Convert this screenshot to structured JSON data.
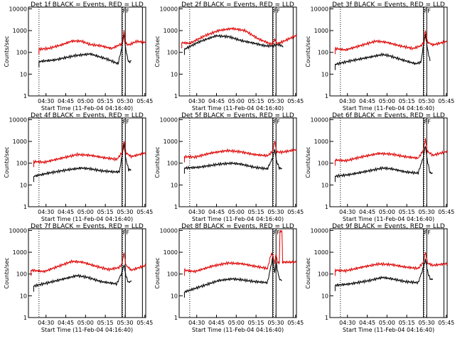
{
  "colors": {
    "events": "#000000",
    "lld": "#dd0000"
  },
  "x_tick_labels": [
    "04:30",
    "04:45",
    "05:00",
    "05:15",
    "05:30",
    "05:45"
  ],
  "y_tick_labels": [
    "1",
    "10",
    "100",
    "1000",
    "10000"
  ],
  "ylabel": "Counts/sec",
  "xlabel": "Start Time (11-Feb-04 04:16:40)",
  "marker_label": "F",
  "chart_data": [
    {
      "type": "line",
      "title": "Det 1f BLACK = Events, RED = LLD",
      "xlabel": "Start Time (11-Feb-04 04:16:40)",
      "ylabel": "Counts/sec",
      "y_scale": "log",
      "ylim": [
        1,
        12000
      ],
      "series": [
        {
          "name": "Events",
          "color": "#000000",
          "points": [
            [
              23,
              38
            ],
            [
              35,
              45
            ],
            [
              50,
              70
            ],
            [
              62,
              85
            ],
            [
              75,
              48
            ],
            [
              83,
              30
            ],
            [
              86,
              180
            ],
            [
              87.5,
              650
            ],
            [
              89,
              120
            ],
            [
              91,
              35
            ],
            [
              93,
              40
            ]
          ]
        },
        {
          "name": "LLD",
          "color": "#dd0000",
          "points": [
            [
              23,
              140
            ],
            [
              30,
              150
            ],
            [
              40,
              220
            ],
            [
              48,
              330
            ],
            [
              55,
              330
            ],
            [
              62,
              230
            ],
            [
              70,
              200
            ],
            [
              78,
              150
            ],
            [
              86,
              250
            ],
            [
              87.5,
              900
            ],
            [
              89,
              250
            ],
            [
              91,
              220
            ],
            [
              97,
              320
            ],
            [
              104,
              290
            ]
          ]
        }
      ]
    },
    {
      "type": "line",
      "title": "Det 2f BLACK = Events, RED = LLD",
      "xlabel": "Start Time (11-Feb-04 04:16:40)",
      "ylabel": "Counts/sec",
      "y_scale": "log",
      "ylim": [
        1,
        12000
      ],
      "series": [
        {
          "name": "Events",
          "color": "#000000",
          "points": [
            [
              19,
              140
            ],
            [
              30,
              300
            ],
            [
              43,
              580
            ],
            [
              53,
              520
            ],
            [
              62,
              350
            ],
            [
              72,
              260
            ],
            [
              80,
              200
            ],
            [
              86,
              200
            ],
            [
              88,
              220
            ],
            [
              91,
              230
            ],
            [
              94,
              180
            ]
          ]
        },
        {
          "name": "LLD",
          "color": "#dd0000",
          "points": [
            [
              17,
              280
            ],
            [
              23,
              260
            ],
            [
              35,
              600
            ],
            [
              45,
              1000
            ],
            [
              55,
              1250
            ],
            [
              65,
              1000
            ],
            [
              75,
              420
            ],
            [
              84,
              250
            ],
            [
              86,
              250
            ],
            [
              87.5,
              380
            ],
            [
              89,
              250
            ],
            [
              93,
              300
            ],
            [
              104,
              600
            ]
          ]
        }
      ]
    },
    {
      "type": "line",
      "title": "Det 3f BLACK = Events, RED = LLD",
      "xlabel": "Start Time (11-Feb-04 04:16:40)",
      "ylabel": "Counts/sec",
      "y_scale": "log",
      "ylim": [
        1,
        12000
      ],
      "series": [
        {
          "name": "Events",
          "color": "#000000",
          "points": [
            [
              19,
              28
            ],
            [
              30,
              40
            ],
            [
              45,
              60
            ],
            [
              55,
              80
            ],
            [
              60,
              70
            ],
            [
              70,
              45
            ],
            [
              80,
              30
            ],
            [
              84,
              35
            ],
            [
              86,
              200
            ],
            [
              87.5,
              650
            ],
            [
              89,
              150
            ],
            [
              91,
              40
            ]
          ]
        },
        {
          "name": "LLD",
          "color": "#dd0000",
          "points": [
            [
              19,
              150
            ],
            [
              27,
              130
            ],
            [
              40,
              220
            ],
            [
              50,
              330
            ],
            [
              58,
              290
            ],
            [
              68,
              200
            ],
            [
              78,
              150
            ],
            [
              84,
              200
            ],
            [
              86,
              260
            ],
            [
              87.5,
              1000
            ],
            [
              89,
              300
            ],
            [
              93,
              220
            ],
            [
              104,
              320
            ]
          ]
        }
      ]
    },
    {
      "type": "line",
      "title": "Det 4f BLACK = Events, RED = LLD",
      "xlabel": "Start Time (11-Feb-04 04:16:40)",
      "ylabel": "Counts/sec",
      "y_scale": "log",
      "ylim": [
        1,
        12000
      ],
      "series": [
        {
          "name": "Events",
          "color": "#000000",
          "points": [
            [
              19,
              25
            ],
            [
              30,
              35
            ],
            [
              45,
              50
            ],
            [
              55,
              60
            ],
            [
              62,
              55
            ],
            [
              70,
              45
            ],
            [
              80,
              40
            ],
            [
              84,
              40
            ],
            [
              86,
              220
            ],
            [
              87.5,
              800
            ],
            [
              89,
              150
            ],
            [
              91,
              50
            ],
            [
              93,
              50
            ]
          ]
        },
        {
          "name": "LLD",
          "color": "#dd0000",
          "points": [
            [
              19,
              120
            ],
            [
              27,
              110
            ],
            [
              40,
              170
            ],
            [
              52,
              250
            ],
            [
              62,
              230
            ],
            [
              72,
              180
            ],
            [
              82,
              150
            ],
            [
              86,
              300
            ],
            [
              87.5,
              1100
            ],
            [
              89,
              300
            ],
            [
              93,
              200
            ],
            [
              104,
              300
            ]
          ]
        }
      ]
    },
    {
      "type": "line",
      "title": "Det 5f BLACK = Events, RED = LLD",
      "xlabel": "Start Time (11-Feb-04 04:16:40)",
      "ylabel": "Counts/sec",
      "y_scale": "log",
      "ylim": [
        1,
        12000
      ],
      "series": [
        {
          "name": "Events",
          "color": "#000000",
          "points": [
            [
              19,
              60
            ],
            [
              30,
              65
            ],
            [
              45,
              90
            ],
            [
              55,
              100
            ],
            [
              62,
              90
            ],
            [
              72,
              65
            ],
            [
              82,
              55
            ],
            [
              86,
              180
            ],
            [
              87.5,
              450
            ],
            [
              89,
              120
            ],
            [
              91,
              60
            ],
            [
              93,
              55
            ]
          ]
        },
        {
          "name": "LLD",
          "color": "#dd0000",
          "points": [
            [
              19,
              200
            ],
            [
              27,
              190
            ],
            [
              40,
              300
            ],
            [
              52,
              380
            ],
            [
              62,
              330
            ],
            [
              72,
              250
            ],
            [
              82,
              220
            ],
            [
              86,
              350
            ],
            [
              87.5,
              1100
            ],
            [
              89,
              330
            ],
            [
              93,
              320
            ],
            [
              104,
              420
            ]
          ]
        }
      ]
    },
    {
      "type": "line",
      "title": "Det 6f BLACK = Events, RED = LLD",
      "xlabel": "Start Time (11-Feb-04 04:16:40)",
      "ylabel": "Counts/sec",
      "y_scale": "log",
      "ylim": [
        1,
        12000
      ],
      "series": [
        {
          "name": "Events",
          "color": "#000000",
          "points": [
            [
              19,
              25
            ],
            [
              30,
              30
            ],
            [
              45,
              45
            ],
            [
              55,
              60
            ],
            [
              62,
              55
            ],
            [
              72,
              40
            ],
            [
              82,
              35
            ],
            [
              86,
              200
            ],
            [
              87.5,
              650
            ],
            [
              89,
              130
            ],
            [
              91,
              35
            ],
            [
              93,
              35
            ]
          ]
        },
        {
          "name": "LLD",
          "color": "#dd0000",
          "points": [
            [
              19,
              140
            ],
            [
              27,
              130
            ],
            [
              40,
              200
            ],
            [
              52,
              280
            ],
            [
              62,
              260
            ],
            [
              72,
              200
            ],
            [
              82,
              170
            ],
            [
              86,
              400
            ],
            [
              87.5,
              1300
            ],
            [
              89,
              350
            ],
            [
              93,
              230
            ],
            [
              104,
              350
            ]
          ]
        }
      ]
    },
    {
      "type": "line",
      "title": "Det 7f BLACK = Events, RED = LLD",
      "xlabel": "Start Time (11-Feb-04 04:16:40)",
      "ylabel": "Counts/sec",
      "y_scale": "log",
      "ylim": [
        1,
        12000
      ],
      "series": [
        {
          "name": "Events",
          "color": "#000000",
          "points": [
            [
              19,
              28
            ],
            [
              30,
              40
            ],
            [
              42,
              60
            ],
            [
              52,
              85
            ],
            [
              60,
              70
            ],
            [
              70,
              45
            ],
            [
              82,
              35
            ],
            [
              86,
              120
            ],
            [
              87.5,
              250
            ],
            [
              89,
              80
            ],
            [
              91,
              40
            ],
            [
              93,
              50
            ]
          ]
        },
        {
          "name": "LLD",
          "color": "#dd0000",
          "points": [
            [
              17,
              150
            ],
            [
              27,
              130
            ],
            [
              38,
              230
            ],
            [
              48,
              380
            ],
            [
              56,
              350
            ],
            [
              66,
              230
            ],
            [
              76,
              160
            ],
            [
              84,
              200
            ],
            [
              86,
              300
            ],
            [
              87.5,
              900
            ],
            [
              89,
              250
            ],
            [
              93,
              150
            ],
            [
              104,
              250
            ]
          ]
        }
      ]
    },
    {
      "type": "line",
      "title": "Det 8f BLACK = Events, RED = LLD",
      "xlabel": "Start Time (11-Feb-04 04:16:40)",
      "ylabel": "Counts/sec",
      "y_scale": "log",
      "ylim": [
        1,
        12000
      ],
      "series": [
        {
          "name": "Events",
          "color": "#000000",
          "points": [
            [
              19,
              15
            ],
            [
              30,
              25
            ],
            [
              45,
              50
            ],
            [
              55,
              60
            ],
            [
              62,
              55
            ],
            [
              72,
              45
            ],
            [
              82,
              40
            ],
            [
              85,
              300
            ],
            [
              86,
              550
            ],
            [
              87.5,
              100
            ],
            [
              88.5,
              400
            ],
            [
              89.5,
              150
            ],
            [
              91,
              60
            ],
            [
              93,
              50
            ]
          ]
        },
        {
          "name": "LLD",
          "color": "#dd0000",
          "points": [
            [
              19,
              150
            ],
            [
              27,
              130
            ],
            [
              40,
              230
            ],
            [
              52,
              320
            ],
            [
              62,
              300
            ],
            [
              72,
              230
            ],
            [
              82,
              180
            ],
            [
              85,
              900
            ],
            [
              86,
              700
            ],
            [
              87.5,
              300
            ],
            [
              88.5,
              900
            ],
            [
              89.5,
              350
            ],
            [
              91,
              300
            ],
            [
              91.5,
              9000
            ],
            [
              93,
              9000
            ],
            [
              93.5,
              350
            ],
            [
              104,
              350
            ]
          ]
        }
      ]
    },
    {
      "type": "line",
      "title": "Det 9f BLACK = Events, RED = LLD",
      "xlabel": "Start Time (11-Feb-04 04:16:40)",
      "ylabel": "Counts/sec",
      "y_scale": "log",
      "ylim": [
        1,
        12000
      ],
      "series": [
        {
          "name": "Events",
          "color": "#000000",
          "points": [
            [
              19,
              30
            ],
            [
              30,
              35
            ],
            [
              45,
              50
            ],
            [
              55,
              70
            ],
            [
              62,
              60
            ],
            [
              72,
              45
            ],
            [
              82,
              40
            ],
            [
              86,
              200
            ],
            [
              87.5,
              450
            ],
            [
              89,
              140
            ],
            [
              91,
              60
            ],
            [
              93,
              55
            ]
          ]
        },
        {
          "name": "LLD",
          "color": "#dd0000",
          "points": [
            [
              19,
              150
            ],
            [
              27,
              140
            ],
            [
              40,
              210
            ],
            [
              52,
              290
            ],
            [
              62,
              270
            ],
            [
              72,
              210
            ],
            [
              82,
              180
            ],
            [
              86,
              350
            ],
            [
              87.5,
              1000
            ],
            [
              89,
              320
            ],
            [
              93,
              250
            ],
            [
              104,
              300
            ]
          ]
        }
      ]
    }
  ]
}
